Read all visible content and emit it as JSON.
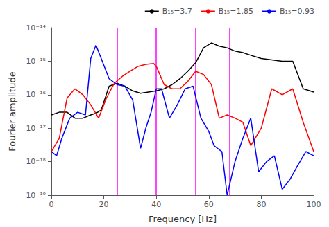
{
  "chart_data": {
    "type": "line",
    "xlabel": "Frequency [Hz]",
    "ylabel": "Fourier amplitude",
    "log": "y",
    "grid": false,
    "legend": "upper right",
    "xlim": [
      0,
      100
    ],
    "xticks": [
      0,
      20,
      40,
      60,
      80,
      100
    ],
    "ylim": [
      1e-19,
      1e-14
    ],
    "yticks": [
      {
        "value": 1e-19,
        "label": "10⁻¹⁹"
      },
      {
        "value": 1e-18,
        "label": "10⁻¹⁸"
      },
      {
        "value": 1e-17,
        "label": "10⁻¹⁷"
      },
      {
        "value": 1e-16,
        "label": "10⁻¹⁶"
      },
      {
        "value": 1e-15,
        "label": "10⁻¹⁵"
      },
      {
        "value": 1e-14,
        "label": "10⁻¹⁴"
      }
    ],
    "vlines": [
      25,
      40,
      55,
      68
    ],
    "vline_color": "#ff00ff",
    "series": [
      {
        "name": "B₁₅=3.7",
        "color": "black",
        "x": [
          0,
          3,
          6,
          9,
          12,
          15,
          17,
          19,
          22,
          25,
          28,
          31,
          34,
          37,
          40,
          43,
          46,
          49,
          52,
          55,
          58,
          61,
          64,
          67,
          70,
          73,
          76,
          80,
          84,
          88,
          92,
          96,
          100
        ],
        "values": [
          2.5e-17,
          3e-17,
          3e-17,
          2e-17,
          2e-17,
          2.5e-17,
          2.8e-17,
          3.5e-17,
          1.8e-16,
          2.2e-16,
          1.8e-16,
          1.3e-16,
          1.1e-16,
          1.2e-16,
          1.3e-16,
          1.5e-16,
          2e-16,
          3e-16,
          5e-16,
          9e-16,
          2.5e-15,
          3.5e-15,
          2.8e-15,
          2.5e-15,
          2e-15,
          1.8e-15,
          1.5e-15,
          1.2e-15,
          1.1e-15,
          1e-15,
          1e-15,
          1.5e-16,
          1.2e-16
        ]
      },
      {
        "name": "B₁₅=1.85",
        "color": "red",
        "x": [
          0,
          3,
          6,
          9,
          12,
          15,
          18,
          21,
          24,
          27,
          30,
          33,
          36,
          39,
          40,
          43,
          46,
          49,
          52,
          55,
          58,
          61,
          64,
          67,
          70,
          73,
          76,
          80,
          84,
          88,
          92,
          96,
          100
        ],
        "values": [
          2e-18,
          5e-18,
          8e-17,
          1.5e-16,
          1e-16,
          5e-17,
          2e-17,
          8e-17,
          2.2e-16,
          3.5e-16,
          5e-16,
          7e-16,
          8e-16,
          8.5e-16,
          7e-16,
          2e-16,
          1.5e-16,
          1.5e-16,
          2.5e-16,
          5e-16,
          4e-16,
          2e-16,
          2e-17,
          2.5e-17,
          2e-17,
          1.5e-17,
          3e-18,
          1e-17,
          1.5e-16,
          1e-16,
          1.5e-16,
          1.5e-17,
          2e-18
        ]
      },
      {
        "name": "B₁₅=0.93",
        "color": "blue",
        "x": [
          0,
          2,
          4,
          7,
          10,
          13,
          15,
          17,
          19,
          22,
          25,
          28,
          31,
          34,
          36,
          38,
          40,
          42,
          45,
          48,
          51,
          54,
          57,
          60,
          62,
          65,
          67,
          70,
          73,
          76,
          79,
          82,
          85,
          88,
          91,
          94,
          97,
          100
        ],
        "values": [
          2e-18,
          1.5e-18,
          5e-18,
          2e-17,
          3e-17,
          2.5e-17,
          1.2e-15,
          3e-15,
          1.2e-15,
          3e-16,
          2e-16,
          1.8e-16,
          7e-17,
          2.5e-18,
          1e-17,
          3e-17,
          1.5e-16,
          1.5e-16,
          2e-17,
          5e-17,
          1.5e-16,
          1.8e-16,
          2e-17,
          8e-18,
          3e-18,
          2e-18,
          1e-19,
          1e-18,
          5e-18,
          2e-17,
          5e-19,
          1e-18,
          1.5e-18,
          1.5e-19,
          3e-19,
          8e-19,
          2e-18,
          1.5e-18
        ]
      }
    ]
  }
}
